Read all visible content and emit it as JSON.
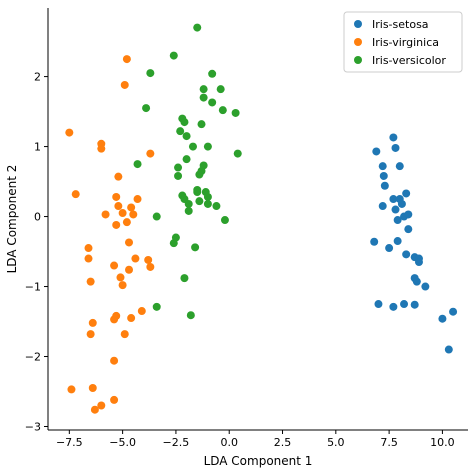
{
  "chart_data": {
    "type": "scatter",
    "title": "",
    "xlabel": "LDA Component 1",
    "ylabel": "LDA Component 2",
    "xlim": [
      -8.5,
      11.2
    ],
    "ylim": [
      -3.05,
      2.98
    ],
    "xticks": [
      -7.5,
      -5.0,
      -2.5,
      0.0,
      2.5,
      5.0,
      7.5,
      10.0
    ],
    "xtick_labels": [
      "−7.5",
      "−5.0",
      "−2.5",
      "0.0",
      "2.5",
      "5.0",
      "7.5",
      "10.0"
    ],
    "yticks": [
      -3,
      -2,
      -1,
      0,
      1,
      2
    ],
    "ytick_labels": [
      "−3",
      "−2",
      "−1",
      "0",
      "1",
      "2"
    ],
    "grid": false,
    "legend_position": "top-right",
    "series": [
      {
        "name": "Iris-setosa",
        "color": "#1f77b4",
        "points": [
          [
            6.8,
            -0.36
          ],
          [
            7.0,
            -1.25
          ],
          [
            6.9,
            0.93
          ],
          [
            7.2,
            0.72
          ],
          [
            7.25,
            0.58
          ],
          [
            7.3,
            0.44
          ],
          [
            7.5,
            -0.45
          ],
          [
            7.7,
            1.13
          ],
          [
            7.8,
            0.98
          ],
          [
            7.7,
            0.25
          ],
          [
            7.2,
            0.15
          ],
          [
            7.7,
            -1.29
          ],
          [
            7.8,
            0.1
          ],
          [
            7.9,
            -0.05
          ],
          [
            8.0,
            0.25
          ],
          [
            8.0,
            0.72
          ],
          [
            8.1,
            0.18
          ],
          [
            8.2,
            0.0
          ],
          [
            8.3,
            0.33
          ],
          [
            8.4,
            0.03
          ],
          [
            8.4,
            -0.18
          ],
          [
            7.9,
            -0.35
          ],
          [
            8.3,
            -0.54
          ],
          [
            8.7,
            -0.58
          ],
          [
            8.9,
            -0.6
          ],
          [
            8.9,
            -0.65
          ],
          [
            8.7,
            -0.88
          ],
          [
            8.8,
            -0.93
          ],
          [
            9.2,
            -1.0
          ],
          [
            8.2,
            -1.25
          ],
          [
            8.7,
            -1.26
          ],
          [
            10.0,
            -1.46
          ],
          [
            10.5,
            -1.36
          ],
          [
            10.3,
            -1.9
          ]
        ]
      },
      {
        "name": "Iris-virginica",
        "color": "#ff7f0e",
        "points": [
          [
            -7.5,
            1.2
          ],
          [
            -7.2,
            0.32
          ],
          [
            -6.6,
            -0.45
          ],
          [
            -6.6,
            -0.6
          ],
          [
            -6.5,
            -0.93
          ],
          [
            -6.4,
            -1.52
          ],
          [
            -6.5,
            -1.68
          ],
          [
            -7.4,
            -2.47
          ],
          [
            -6.4,
            -2.45
          ],
          [
            -6.3,
            -2.76
          ],
          [
            -6.0,
            -2.7
          ],
          [
            -6.0,
            1.04
          ],
          [
            -6.0,
            0.97
          ],
          [
            -5.8,
            0.03
          ],
          [
            -5.4,
            -2.06
          ],
          [
            -5.4,
            -1.47
          ],
          [
            -5.3,
            -1.42
          ],
          [
            -5.4,
            -2.62
          ],
          [
            -5.4,
            -0.7
          ],
          [
            -5.3,
            -0.12
          ],
          [
            -5.3,
            0.28
          ],
          [
            -5.2,
            0.15
          ],
          [
            -5.2,
            0.57
          ],
          [
            -5.1,
            -0.87
          ],
          [
            -5.0,
            -0.98
          ],
          [
            -5.0,
            0.05
          ],
          [
            -4.9,
            1.88
          ],
          [
            -4.8,
            2.25
          ],
          [
            -4.9,
            -1.68
          ],
          [
            -4.8,
            -0.08
          ],
          [
            -4.7,
            -0.76
          ],
          [
            -4.7,
            -0.37
          ],
          [
            -4.6,
            -1.45
          ],
          [
            -4.6,
            0.13
          ],
          [
            -4.5,
            0.03
          ],
          [
            -4.4,
            -0.6
          ],
          [
            -4.3,
            0.25
          ],
          [
            -4.1,
            -1.35
          ],
          [
            -3.8,
            -0.62
          ],
          [
            -3.7,
            -0.72
          ],
          [
            -3.7,
            0.9
          ]
        ]
      },
      {
        "name": "Iris-versicolor",
        "color": "#2ca02c",
        "points": [
          [
            -4.3,
            0.75
          ],
          [
            -3.9,
            1.55
          ],
          [
            -3.7,
            2.05
          ],
          [
            -3.4,
            0.0
          ],
          [
            -3.4,
            -1.29
          ],
          [
            -2.6,
            2.3
          ],
          [
            -2.6,
            -0.38
          ],
          [
            -2.5,
            -0.3
          ],
          [
            -2.4,
            0.58
          ],
          [
            -2.4,
            0.7
          ],
          [
            -2.3,
            1.22
          ],
          [
            -2.2,
            1.4
          ],
          [
            -2.1,
            1.35
          ],
          [
            -2.2,
            0.3
          ],
          [
            -2.1,
            0.25
          ],
          [
            -2.0,
            1.15
          ],
          [
            -2.0,
            0.82
          ],
          [
            -1.9,
            0.18
          ],
          [
            -1.9,
            0.08
          ],
          [
            -2.1,
            -0.88
          ],
          [
            -1.8,
            -1.41
          ],
          [
            -1.7,
            1.0
          ],
          [
            -1.6,
            -0.44
          ],
          [
            -1.5,
            2.7
          ],
          [
            -1.5,
            0.35
          ],
          [
            -1.5,
            0.38
          ],
          [
            -1.4,
            0.6
          ],
          [
            -1.4,
            0.22
          ],
          [
            -1.3,
            1.32
          ],
          [
            -1.3,
            0.65
          ],
          [
            -1.2,
            1.82
          ],
          [
            -1.2,
            1.7
          ],
          [
            -1.2,
            0.73
          ],
          [
            -1.1,
            0.35
          ],
          [
            -1.0,
            0.18
          ],
          [
            -1.0,
            0.28
          ],
          [
            -1.0,
            1.0
          ],
          [
            -0.8,
            2.04
          ],
          [
            -0.8,
            1.63
          ],
          [
            -0.6,
            0.15
          ],
          [
            -0.4,
            1.82
          ],
          [
            -0.3,
            1.52
          ],
          [
            -0.2,
            -0.05
          ],
          [
            0.3,
            1.48
          ],
          [
            0.4,
            0.9
          ]
        ]
      }
    ]
  }
}
